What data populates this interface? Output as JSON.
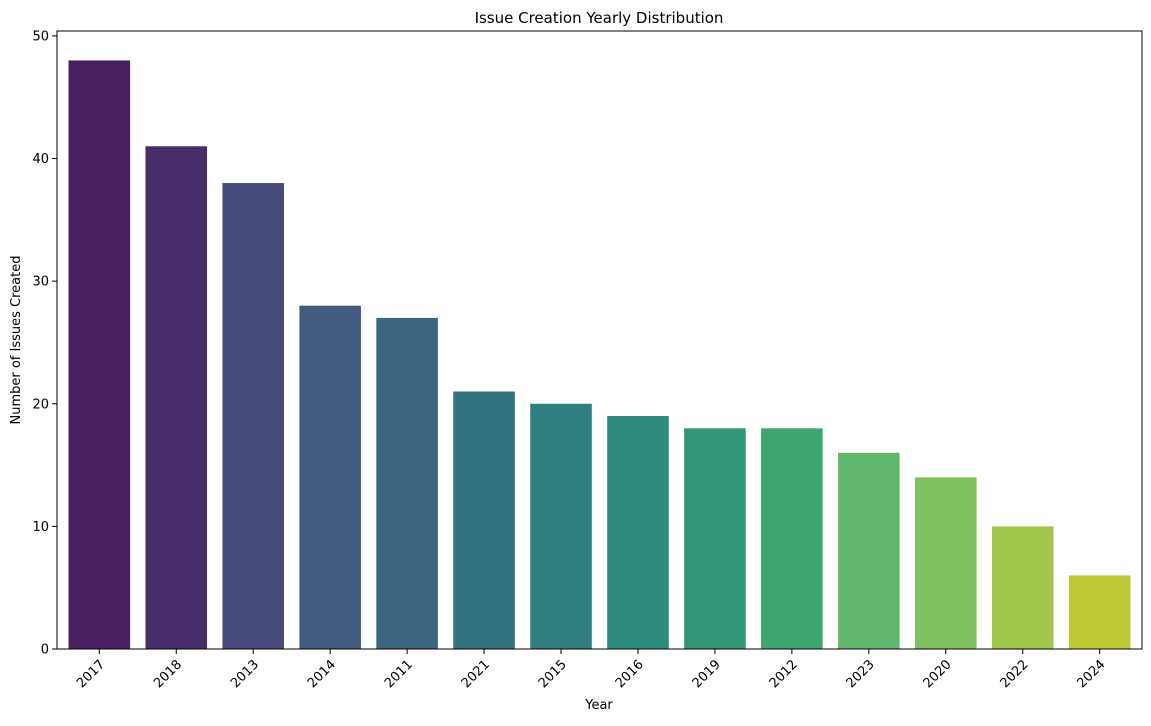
{
  "chart_data": {
    "type": "bar",
    "title": "Issue Creation Yearly Distribution",
    "xlabel": "Year",
    "ylabel": "Number of Issues Created",
    "categories": [
      "2017",
      "2018",
      "2013",
      "2014",
      "2011",
      "2021",
      "2015",
      "2016",
      "2019",
      "2012",
      "2023",
      "2020",
      "2022",
      "2024"
    ],
    "values": [
      48,
      41,
      38,
      28,
      27,
      21,
      20,
      19,
      18,
      18,
      16,
      14,
      10,
      6
    ],
    "colors": [
      "#481f5f",
      "#482f6b",
      "#474b7b",
      "#435a81",
      "#3c6580",
      "#33727f",
      "#307f80",
      "#2d8b7b",
      "#329678",
      "#3da670",
      "#61b76c",
      "#80c15d",
      "#a1c64a",
      "#bfc835"
    ],
    "ylim": [
      0,
      50.4
    ],
    "yticks": [
      0,
      10,
      20,
      30,
      40,
      50
    ],
    "grid": false,
    "legend": "none"
  }
}
